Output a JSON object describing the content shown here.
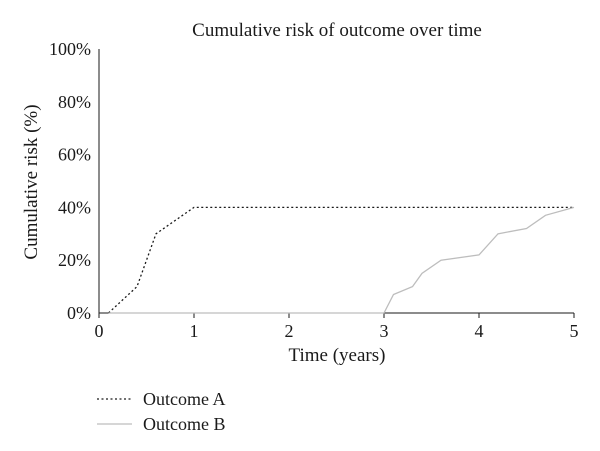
{
  "chart_data": {
    "type": "line",
    "title": "Cumulative risk of outcome over time",
    "xlabel": "Time (years)",
    "ylabel": "Cumulative risk (%)",
    "xlim": [
      0,
      5
    ],
    "ylim": [
      0,
      100
    ],
    "x_ticks": [
      "0",
      "1",
      "2",
      "3",
      "4",
      "5"
    ],
    "y_ticks": [
      "0%",
      "20%",
      "40%",
      "60%",
      "80%",
      "100%"
    ],
    "grid": false,
    "legend_position": "bottom-left",
    "series": [
      {
        "name": "Outcome A",
        "style": "dotted",
        "color": "#1a1a1a",
        "points": [
          [
            0.1,
            0
          ],
          [
            0.4,
            10
          ],
          [
            0.6,
            30
          ],
          [
            1.0,
            40
          ],
          [
            5.0,
            40
          ]
        ]
      },
      {
        "name": "Outcome B",
        "style": "solid",
        "color": "#bdbdbd",
        "points": [
          [
            0.1,
            0
          ],
          [
            3.0,
            0
          ],
          [
            3.1,
            7
          ],
          [
            3.3,
            10
          ],
          [
            3.4,
            15
          ],
          [
            3.6,
            20
          ],
          [
            4.0,
            22
          ],
          [
            4.2,
            30
          ],
          [
            4.5,
            32
          ],
          [
            4.7,
            37
          ],
          [
            5.0,
            40
          ]
        ]
      }
    ]
  }
}
